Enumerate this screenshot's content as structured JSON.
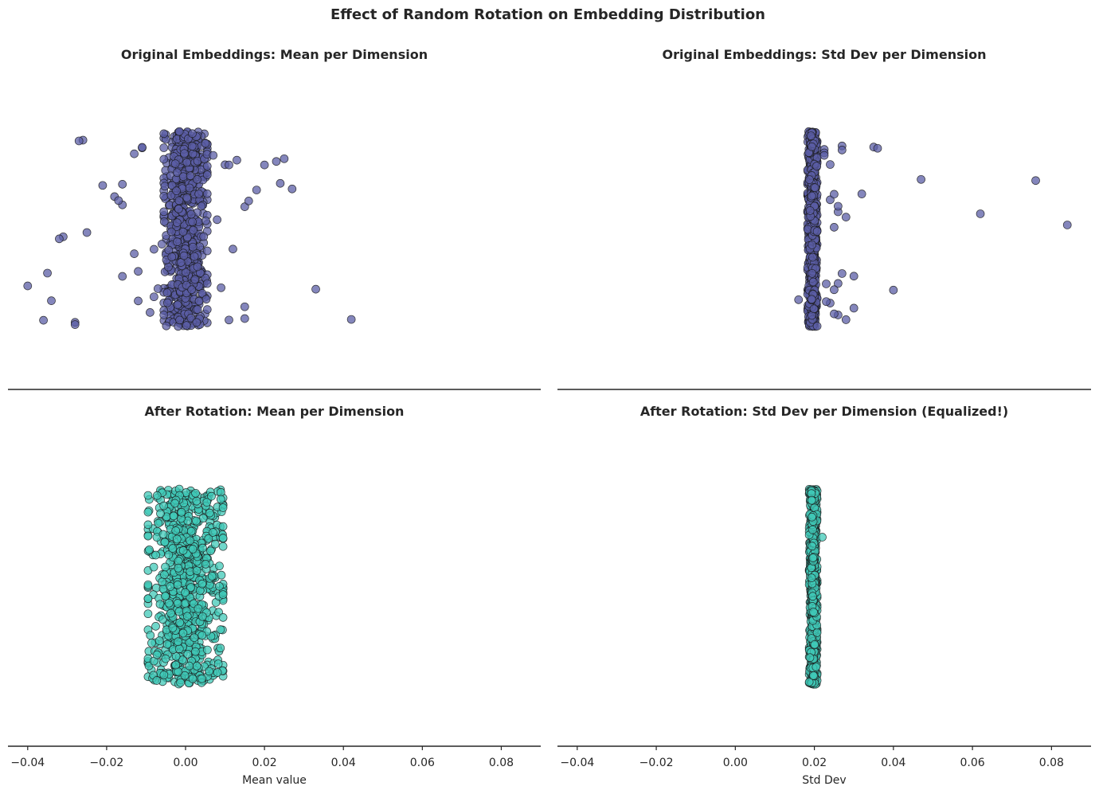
{
  "figure": {
    "suptitle": "Effect of Random Rotation on Embedding Distribution"
  },
  "colors": {
    "original": "#5b5ea6",
    "rotated": "#40c9b8",
    "edge": "#1a1a1a",
    "axis": "#262626",
    "text": "#262626"
  },
  "chart_data": [
    {
      "type": "scatter",
      "style": "strip",
      "title": "Original Embeddings: Mean per Dimension",
      "xlabel": "",
      "xlim": [
        -0.045,
        0.09
      ],
      "xticks": [],
      "sharex": "column",
      "color": "original",
      "bulk": {
        "n": 768,
        "center": 0.0,
        "half_width": 0.0055
      },
      "outliers": [
        -0.035,
        -0.034,
        -0.031,
        -0.025,
        -0.021,
        -0.016,
        -0.013,
        -0.011,
        -0.009,
        -0.008,
        -0.006,
        -0.032,
        -0.013,
        -0.007,
        0.008,
        0.009,
        0.018,
        0.025,
        0.011,
        0.012,
        0.015,
        -0.04,
        -0.028,
        -0.026,
        -0.018,
        -0.016,
        -0.012,
        -0.011,
        0.015,
        0.02,
        0.023,
        0.015,
        0.007,
        0.01,
        -0.036,
        -0.028,
        -0.027,
        -0.016,
        -0.008,
        0.016,
        0.027,
        0.033,
        0.024,
        0.042,
        -0.012,
        -0.017,
        0.011,
        0.013
      ]
    },
    {
      "type": "scatter",
      "style": "strip",
      "title": "Original Embeddings: Std Dev per Dimension",
      "xlabel": "",
      "xlim": [
        -0.045,
        0.09
      ],
      "xticks": [],
      "sharex": "column",
      "color": "original",
      "bulk": {
        "n": 768,
        "center": 0.0195,
        "half_width": 0.0012
      },
      "outliers": [
        0.016,
        0.0225,
        0.023,
        0.024,
        0.025,
        0.026,
        0.027,
        0.028,
        0.028,
        0.03,
        0.035,
        0.04,
        0.062,
        0.0225,
        0.024,
        0.026,
        0.027,
        0.03,
        0.036,
        0.084,
        0.025,
        0.026,
        0.047,
        0.032,
        0.076,
        0.0225,
        0.024,
        0.025,
        0.027,
        0.023,
        0.025,
        0.026
      ]
    },
    {
      "type": "scatter",
      "style": "strip",
      "title": "After Rotation: Mean per Dimension",
      "xlabel": "Mean value",
      "xlim": [
        -0.045,
        0.09
      ],
      "xticks": [
        "−0.04",
        "−0.02",
        "0.00",
        "0.02",
        "0.04",
        "0.06",
        "0.08"
      ],
      "xtick_values": [
        -0.04,
        -0.02,
        0.0,
        0.02,
        0.04,
        0.06,
        0.08
      ],
      "color": "rotated",
      "bulk": {
        "n": 768,
        "center": 0.0,
        "half_width": 0.0095
      },
      "outliers": []
    },
    {
      "type": "scatter",
      "style": "strip",
      "title": "After Rotation: Std Dev per Dimension (Equalized!)",
      "xlabel": "Std Dev",
      "xlim": [
        -0.045,
        0.09
      ],
      "xticks": [
        "−0.04",
        "−0.02",
        "0.00",
        "0.02",
        "0.04",
        "0.06",
        "0.08"
      ],
      "xtick_values": [
        -0.04,
        -0.02,
        0.0,
        0.02,
        0.04,
        0.06,
        0.08
      ],
      "color": "rotated",
      "bulk": {
        "n": 768,
        "center": 0.0197,
        "half_width": 0.001
      },
      "outliers": [
        0.022
      ]
    }
  ]
}
